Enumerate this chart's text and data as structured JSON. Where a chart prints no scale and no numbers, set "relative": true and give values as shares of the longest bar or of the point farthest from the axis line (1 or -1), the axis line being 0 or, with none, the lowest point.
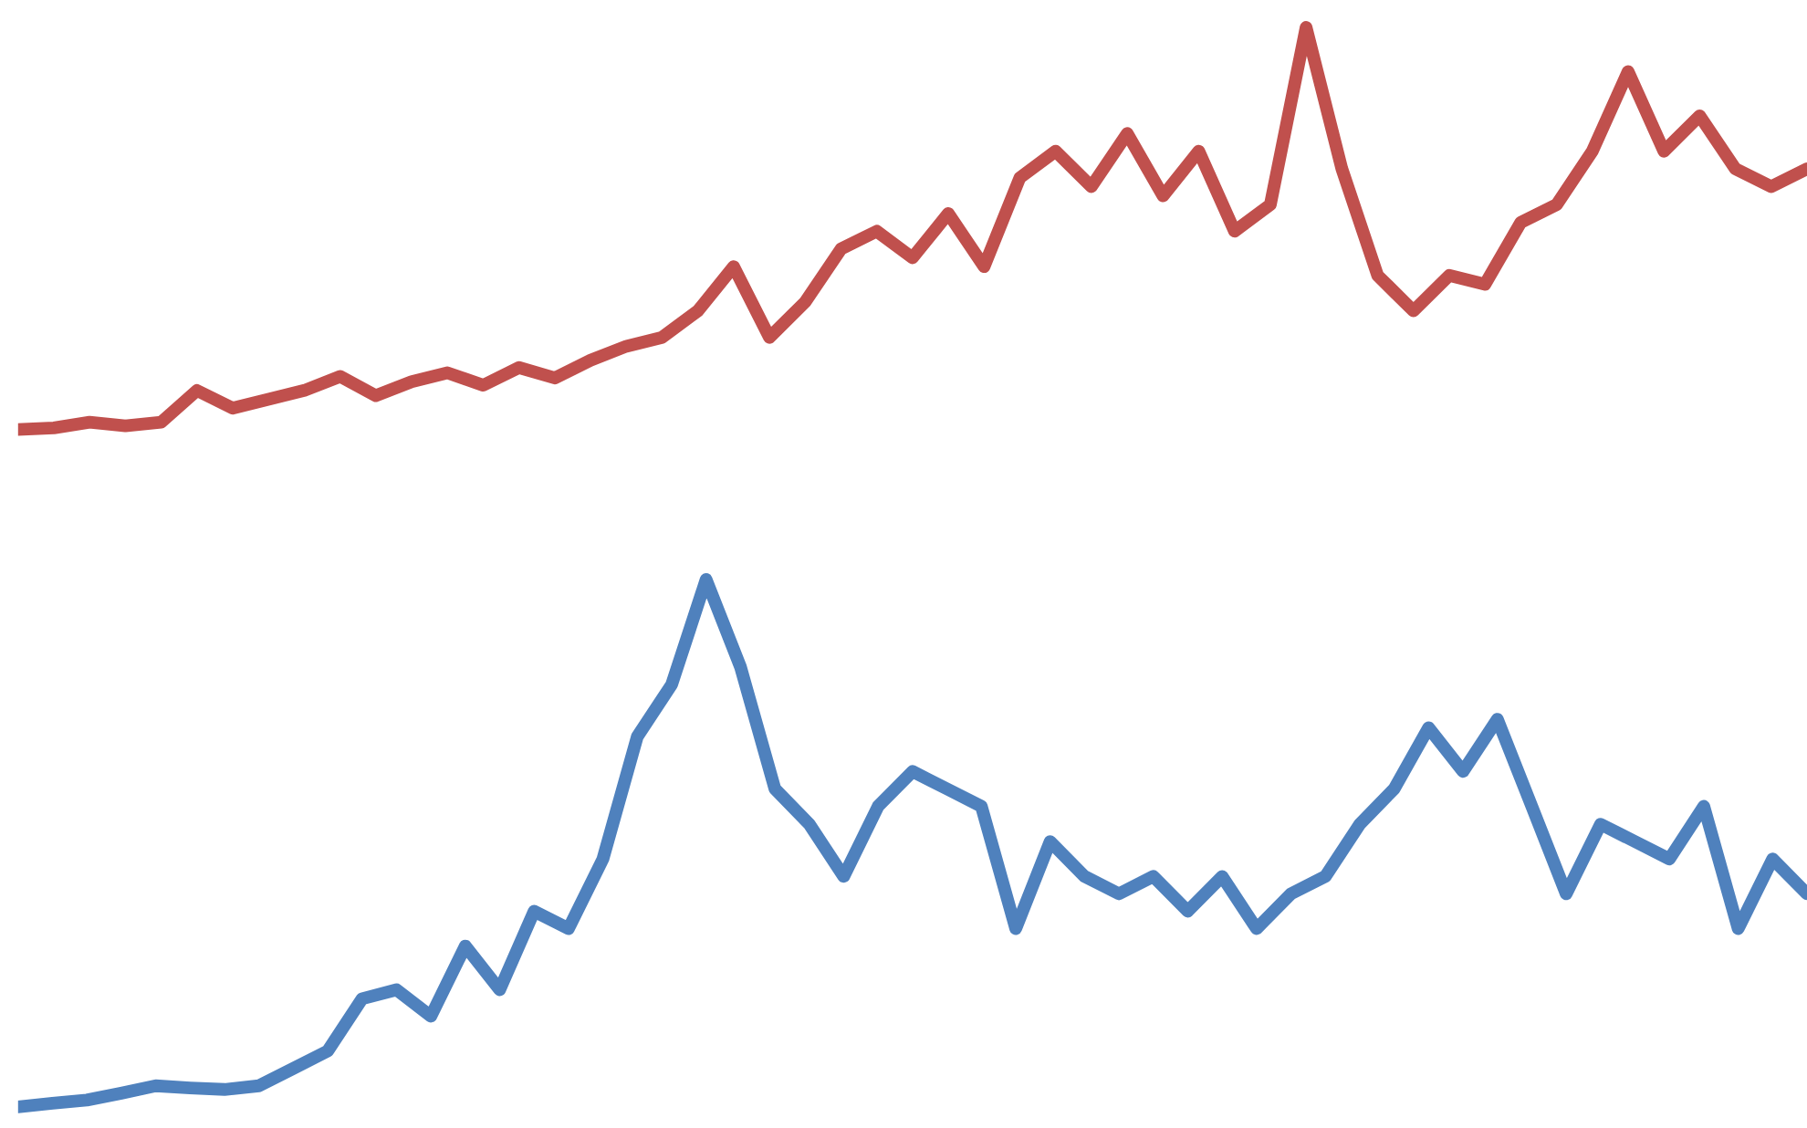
{
  "chart_data": [
    {
      "type": "line",
      "relative": true,
      "categories": [
        null,
        null,
        null,
        null,
        null,
        null,
        null,
        null,
        null,
        null,
        null,
        null,
        null,
        null,
        null,
        null,
        null,
        null,
        null,
        null,
        null,
        null,
        null,
        null,
        null,
        null,
        null,
        null,
        null,
        null,
        null,
        null,
        null,
        null,
        null,
        null,
        null,
        null,
        null,
        null,
        null,
        null,
        null,
        null,
        null,
        null,
        null,
        null,
        null,
        null,
        null
      ],
      "series": [
        {
          "color": "#c0504d",
          "values": [
            0,
            0.004,
            0.018,
            0.009,
            0.018,
            0.097,
            0.053,
            0.075,
            0.097,
            0.132,
            0.084,
            0.119,
            0.141,
            0.11,
            0.154,
            0.128,
            0.172,
            0.207,
            0.229,
            0.295,
            0.405,
            0.229,
            0.317,
            0.449,
            0.493,
            0.427,
            0.537,
            0.405,
            0.626,
            0.692,
            0.604,
            0.736,
            0.581,
            0.692,
            0.493,
            0.559,
            1,
            0.648,
            0.383,
            0.295,
            0.383,
            0.361,
            0.515,
            0.559,
            0.692,
            0.89,
            0.692,
            0.78,
            0.648,
            0.604,
            0.648
          ]
        }
      ]
    },
    {
      "type": "line",
      "relative": true,
      "categories": [
        null,
        null,
        null,
        null,
        null,
        null,
        null,
        null,
        null,
        null,
        null,
        null,
        null,
        null,
        null,
        null,
        null,
        null,
        null,
        null,
        null,
        null,
        null,
        null,
        null,
        null,
        null,
        null,
        null,
        null,
        null,
        null,
        null,
        null,
        null,
        null,
        null,
        null,
        null,
        null,
        null,
        null,
        null,
        null,
        null,
        null,
        null,
        null,
        null,
        null,
        null,
        null,
        null
      ],
      "series": [
        {
          "color": "#4f81bd",
          "values": [
            0,
            0.007,
            0.013,
            0.026,
            0.04,
            0.036,
            0.033,
            0.04,
            0.073,
            0.106,
            0.205,
            0.222,
            0.172,
            0.305,
            0.222,
            0.371,
            0.338,
            0.47,
            0.702,
            0.801,
            1,
            0.834,
            0.603,
            0.536,
            0.437,
            0.57,
            0.636,
            0.603,
            0.57,
            0.338,
            0.503,
            0.437,
            0.404,
            0.437,
            0.371,
            0.437,
            0.338,
            0.404,
            0.437,
            0.536,
            0.603,
            0.719,
            0.636,
            0.735,
            0.57,
            0.404,
            0.536,
            0.503,
            0.47,
            0.57,
            0.338,
            0.47,
            0.404
          ]
        }
      ]
    }
  ]
}
